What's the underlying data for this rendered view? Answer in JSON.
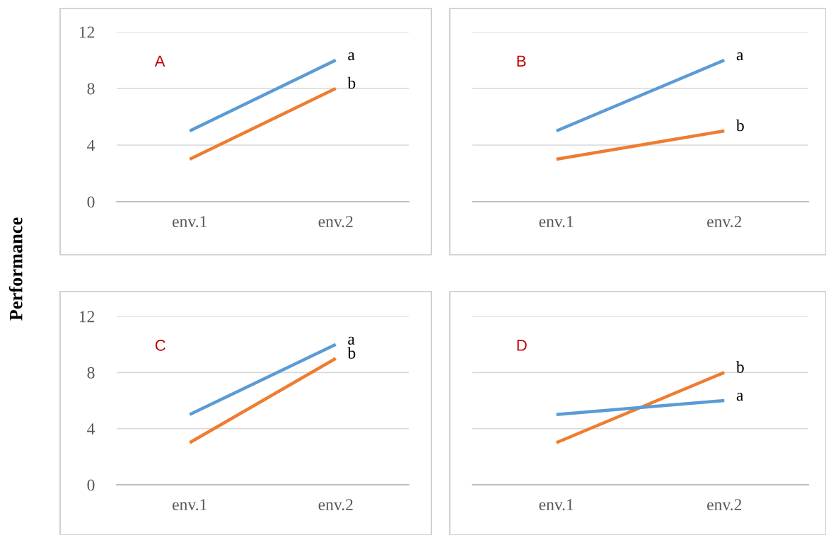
{
  "chart_data": [
    {
      "type": "line",
      "ylabel": "Performance",
      "categories": [
        "env.1",
        "env.2"
      ],
      "ylim": [
        0,
        12
      ],
      "yticks": [
        0,
        4,
        8,
        12
      ],
      "grid": "y",
      "legend": false,
      "marker": "none",
      "line_style": "solid",
      "annotations": [
        "A"
      ],
      "series": [
        {
          "name": "a",
          "color": "#5b9bd5",
          "values": [
            5,
            10
          ]
        },
        {
          "name": "b",
          "color": "#ed7d31",
          "values": [
            3,
            8
          ]
        }
      ]
    },
    {
      "type": "line",
      "categories": [
        "env.1",
        "env.2"
      ],
      "ylim": [
        0,
        12
      ],
      "yticks": [
        0,
        4,
        8,
        12
      ],
      "tick_labels": "x",
      "grid": "y",
      "legend": false,
      "marker": "none",
      "line_style": "solid",
      "annotations": [
        "B"
      ],
      "series": [
        {
          "name": "a",
          "color": "#5b9bd5",
          "values": [
            5,
            10
          ]
        },
        {
          "name": "b",
          "color": "#ed7d31",
          "values": [
            3,
            5
          ]
        }
      ]
    },
    {
      "type": "line",
      "categories": [
        "env.1",
        "env.2"
      ],
      "ylim": [
        0,
        12
      ],
      "yticks": [
        0,
        4,
        8,
        12
      ],
      "grid": "y",
      "legend": false,
      "marker": "none",
      "line_style": "solid",
      "annotations": [
        "C"
      ],
      "series": [
        {
          "name": "a",
          "color": "#5b9bd5",
          "values": [
            5,
            10
          ]
        },
        {
          "name": "b",
          "color": "#ed7d31",
          "values": [
            3,
            9
          ]
        }
      ]
    },
    {
      "type": "line",
      "categories": [
        "env.1",
        "env.2"
      ],
      "ylim": [
        0,
        12
      ],
      "yticks": [
        0,
        4,
        8,
        12
      ],
      "tick_labels": "x",
      "grid": "y",
      "legend": false,
      "marker": "none",
      "line_style": "solid",
      "annotations": [
        "D"
      ],
      "series": [
        {
          "name": "b",
          "color": "#ed7d31",
          "values": [
            3,
            8
          ]
        },
        {
          "name": "a",
          "color": "#5b9bd5",
          "values": [
            5,
            6
          ]
        }
      ]
    }
  ]
}
